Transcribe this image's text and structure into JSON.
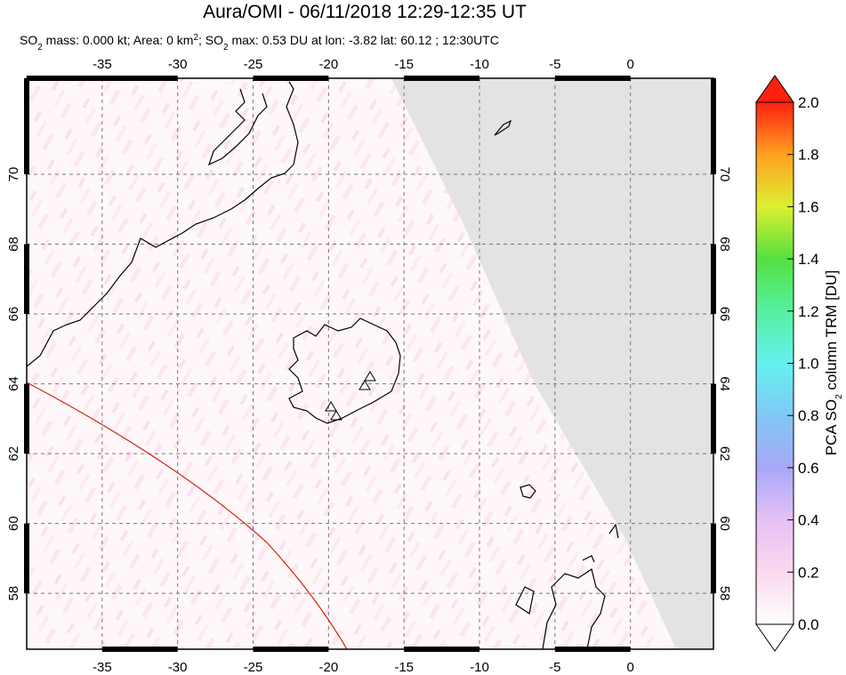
{
  "header": {
    "title": "Aura/OMI - 06/11/2018 12:29-12:35 UT",
    "subtitle": [
      "SO",
      "2",
      " mass: 0.000 kt; Area: 0 km",
      "2",
      "; SO",
      "2",
      " max: 0.53 DU at lon: -3.82 lat: 60.12 ; 12:30UTC"
    ]
  },
  "map": {
    "lonlim": [
      -40,
      5.5
    ],
    "latlim": [
      56.4,
      72.75
    ],
    "lon_ticks": [
      -35,
      -30,
      -25,
      -20,
      -15,
      -10,
      -5,
      0
    ],
    "lat_ticks": [
      58,
      60,
      62,
      64,
      66,
      68,
      70
    ]
  },
  "colorbar": {
    "label": [
      "PCA SO",
      "2",
      " column TRM [DU]"
    ],
    "lim": [
      0,
      2
    ],
    "ticks": [
      {
        "value": 0,
        "label": "0.0"
      },
      {
        "value": 0.2,
        "label": "0.2"
      },
      {
        "value": 0.4,
        "label": "0.4"
      },
      {
        "value": 0.6,
        "label": "0.6"
      },
      {
        "value": 0.8,
        "label": "0.8"
      },
      {
        "value": 1,
        "label": "1.0"
      },
      {
        "value": 1.2,
        "label": "1.2"
      },
      {
        "value": 1.4,
        "label": "1.4"
      },
      {
        "value": 1.6,
        "label": "1.6"
      },
      {
        "value": 1.8,
        "label": "1.8"
      },
      {
        "value": 2,
        "label": "2.0"
      }
    ]
  }
}
